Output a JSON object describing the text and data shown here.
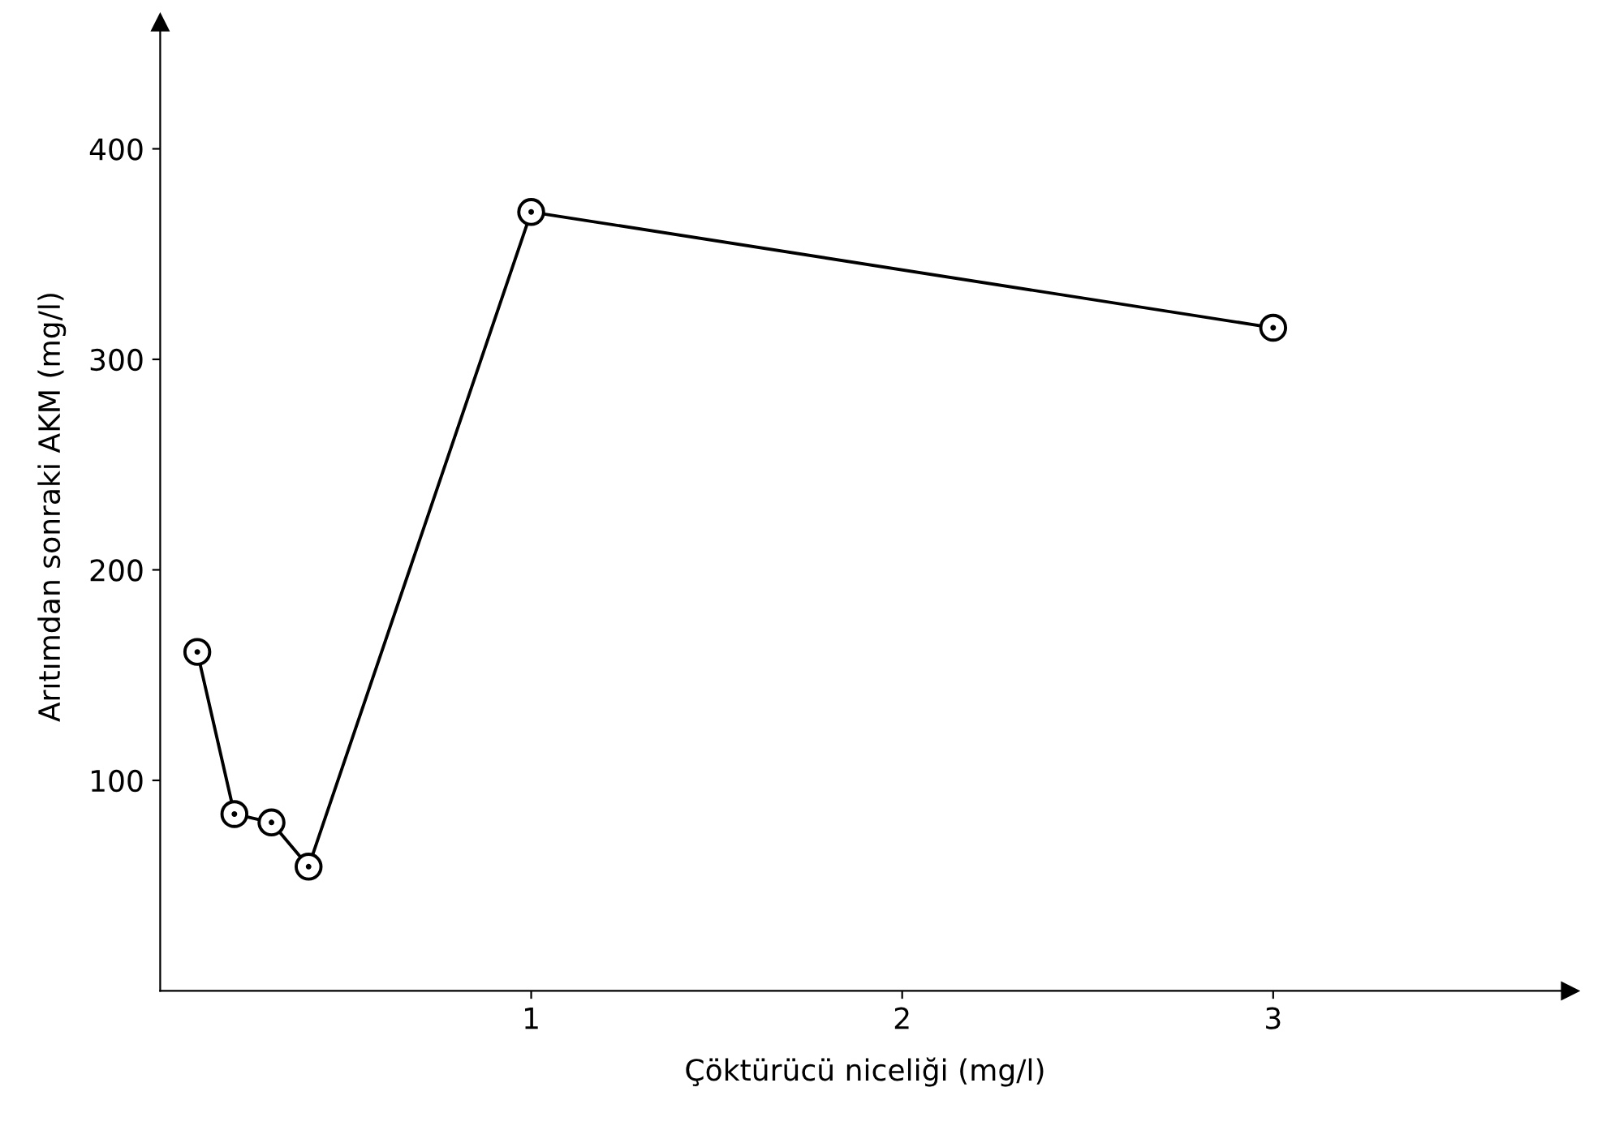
{
  "chart_data": {
    "type": "line",
    "xlabel": "Çöktürücü niceliği (mg/l)",
    "ylabel": "Arıtımdan sonraki AKM (mg/l)",
    "x": [
      0.1,
      0.2,
      0.3,
      0.4,
      1,
      3
    ],
    "series": [
      {
        "color": "#000000",
        "values": [
          161,
          84,
          80,
          59,
          370,
          315
        ]
      }
    ],
    "xlim": [
      0,
      3.8
    ],
    "ylim": [
      0,
      460
    ],
    "xticks": [
      1,
      2,
      3
    ],
    "yticks": [
      100,
      200,
      300,
      400
    ],
    "grid": false,
    "legend": false,
    "marker": "circle",
    "line_style": "solid"
  }
}
